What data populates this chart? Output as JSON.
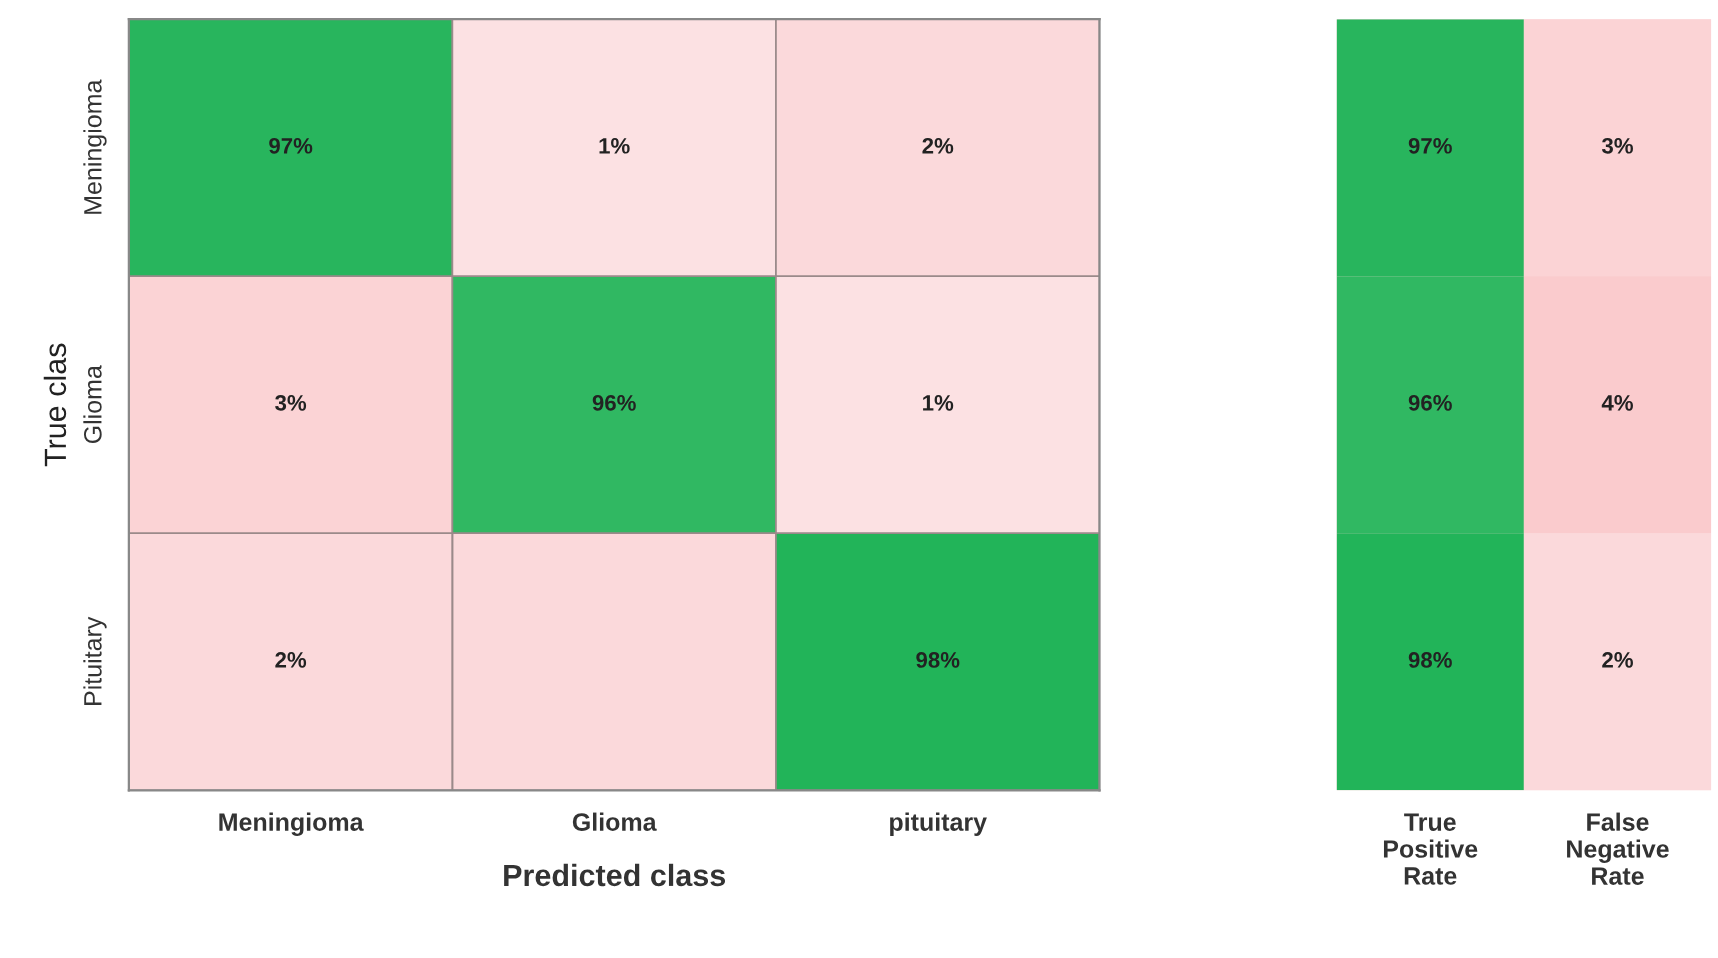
{
  "chart_data": [
    {
      "type": "heatmap",
      "xlabel": "Predicted class",
      "ylabel": "True clas",
      "categories": [
        "Meningioma",
        "Glioma",
        "pituitary"
      ],
      "y_categories": [
        "Meningioma",
        "Glioma",
        "Pituitary"
      ],
      "cells": [
        [
          97,
          1,
          2
        ],
        [
          3,
          96,
          1
        ],
        [
          2,
          null,
          98
        ]
      ],
      "cell_labels": [
        [
          "97%",
          "1%",
          "2%"
        ],
        [
          "3%",
          "96%",
          "1%"
        ],
        [
          "2%",
          null,
          "98%"
        ]
      ]
    },
    {
      "type": "heatmap",
      "categories": [
        "True\nPositive\nRate",
        "False\nNegative\nRate"
      ],
      "y_categories": [
        null,
        null,
        null
      ],
      "cells": [
        [
          97,
          3
        ],
        [
          96,
          4
        ],
        [
          98,
          2
        ]
      ],
      "cell_labels": [
        [
          "97%",
          "3%"
        ],
        [
          "96%",
          "4%"
        ],
        [
          "98%",
          "2%"
        ]
      ]
    }
  ]
}
